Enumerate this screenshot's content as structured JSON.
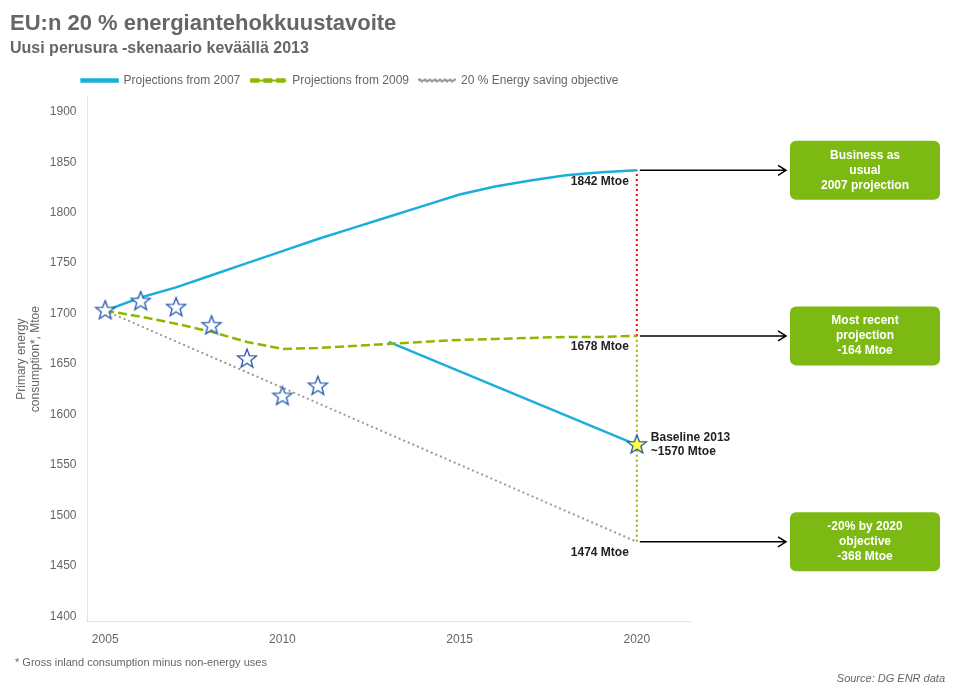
{
  "chart_data": {
    "type": "line",
    "title": "EU:n 20 % energiantehokkuustavoite",
    "subtitle": "Uusi perusura -skenaario keväällä 2013",
    "ylabel": "Primary energy\nconsumption*, Mtoe",
    "footnote": "* Gross inland consumption minus non-energy uses",
    "source": "Source: DG ENR data",
    "grid": false,
    "legend": "top",
    "xlim": [
      2004.5,
      2021.5
    ],
    "ylim": [
      1395,
      1915
    ],
    "xticks": [
      2005,
      2010,
      2015,
      2020
    ],
    "yticks": [
      1400,
      1450,
      1500,
      1550,
      1600,
      1650,
      1700,
      1750,
      1800,
      1850,
      1900
    ],
    "series": [
      {
        "name": "Projections from 2007",
        "type": "line",
        "color": "#1AAFDB",
        "line_style": "solid",
        "x": [
          2005,
          2006,
          2007,
          2008,
          2009,
          2010,
          2011,
          2012,
          2013,
          2014,
          2015,
          2016,
          2017,
          2018,
          2019,
          2020
        ],
        "values": [
          1703,
          1716,
          1726,
          1738,
          1750,
          1762,
          1774,
          1785,
          1796,
          1807,
          1818,
          1826,
          1832,
          1837,
          1840,
          1842
        ]
      },
      {
        "name": "Projections from 2009",
        "type": "line",
        "color": "#8CB800",
        "line_style": "dashed",
        "x": [
          2005,
          2006,
          2007,
          2008,
          2009,
          2010,
          2011,
          2012,
          2013,
          2014,
          2015,
          2016,
          2017,
          2018,
          2019,
          2020
        ],
        "values": [
          1703,
          1697,
          1690,
          1682,
          1672,
          1665,
          1666,
          1668,
          1670,
          1672,
          1674,
          1675,
          1676,
          1677,
          1677,
          1678
        ]
      },
      {
        "name": "20 % Energy saving objective",
        "type": "line",
        "color": "#999999",
        "line_style": "dotted",
        "x": [
          2005,
          2020
        ],
        "values": [
          1703,
          1474
        ]
      },
      {
        "type": "line",
        "color": "#1AAFDB",
        "line_style": "solid",
        "x": [
          2013,
          2020
        ],
        "values": [
          1672,
          1570
        ]
      },
      {
        "type": "line",
        "color": "#ff0000",
        "line_style": "dotted",
        "x": [
          2020,
          2020
        ],
        "values": [
          1678,
          1842
        ]
      },
      {
        "type": "line",
        "color": "#8CB800",
        "line_style": "dotted",
        "x": [
          2020,
          2020
        ],
        "values": [
          1474,
          1678
        ]
      },
      {
        "type": "scatter",
        "marker": "star",
        "color": "#ffffff",
        "x": [
          2005,
          2006,
          2007,
          2008,
          2009,
          2010,
          2011
        ],
        "values": [
          1703,
          1712,
          1706,
          1688,
          1655,
          1618,
          1628
        ]
      },
      {
        "type": "scatter",
        "marker": "star",
        "color": "#FFFF44",
        "x": [
          2020
        ],
        "values": [
          1570
        ]
      }
    ],
    "annotations": [
      {
        "text": "1842 Mtoe",
        "x": 2020,
        "y": 1842,
        "position": "left"
      },
      {
        "text": "1678 Mtoe",
        "x": 2020,
        "y": 1678,
        "position": "left"
      },
      {
        "text": "1474 Mtoe",
        "x": 2020,
        "y": 1474,
        "position": "left"
      },
      {
        "text": "Baseline 2013\n~1570 Mtoe",
        "x": 2020,
        "y": 1570,
        "position": "right"
      }
    ],
    "callouts": [
      {
        "text": "Business as\nusual\n2007 projection",
        "x": 2020,
        "y": 1842,
        "color": "#7DB913"
      },
      {
        "text": "Most recent\nprojection\n-164 Mtoe",
        "x": 2020,
        "y": 1678,
        "color": "#7DB913"
      },
      {
        "text": "-20% by 2020\nobjective\n-368 Mtoe",
        "x": 2020,
        "y": 1474,
        "color": "#7DB913"
      }
    ]
  }
}
